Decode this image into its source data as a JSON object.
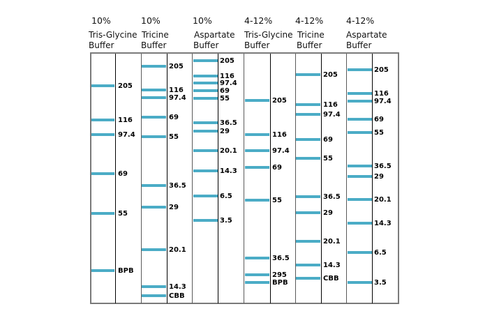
{
  "lanes": [
    {
      "percent": "10%",
      "buffer_line1": "Tris-Glycine",
      "buffer_line2": "Buffer",
      "markers": [
        {
          "label": "205",
          "pos": 123
        },
        {
          "label": "116",
          "pos": 172
        },
        {
          "label": "97.4",
          "pos": 193
        },
        {
          "label": "69",
          "pos": 249
        },
        {
          "label": "55",
          "pos": 306
        },
        {
          "label": "BPB",
          "pos": 388
        }
      ]
    },
    {
      "percent": "10%",
      "buffer_line1": "Tricine",
      "buffer_line2": "Buffer",
      "markers": [
        {
          "label": "205",
          "pos": 95
        },
        {
          "label": "116",
          "pos": 129
        },
        {
          "label": "97.4",
          "pos": 140
        },
        {
          "label": "69",
          "pos": 168
        },
        {
          "label": "55",
          "pos": 196
        },
        {
          "label": "36.5",
          "pos": 266
        },
        {
          "label": "29",
          "pos": 297
        },
        {
          "label": "20.1",
          "pos": 358
        },
        {
          "label": "14.3",
          "pos": 411
        },
        {
          "label": "CBB",
          "pos": 424
        }
      ]
    },
    {
      "percent": "10%",
      "buffer_line1": "Aspartate",
      "buffer_line2": "Buffer",
      "markers": [
        {
          "label": "205",
          "pos": 87
        },
        {
          "label": "116",
          "pos": 109
        },
        {
          "label": "97.4",
          "pos": 119
        },
        {
          "label": "69",
          "pos": 130
        },
        {
          "label": "55",
          "pos": 141
        },
        {
          "label": "36.5",
          "pos": 176
        },
        {
          "label": "29",
          "pos": 188
        },
        {
          "label": "20.1",
          "pos": 216
        },
        {
          "label": "14.3",
          "pos": 245
        },
        {
          "label": "6.5",
          "pos": 281
        },
        {
          "label": "3.5",
          "pos": 316
        }
      ]
    },
    {
      "percent": "4-12%",
      "buffer_line1": "Tris-Glycine",
      "buffer_line2": "Buffer",
      "markers": [
        {
          "label": "205",
          "pos": 144
        },
        {
          "label": "116",
          "pos": 193
        },
        {
          "label": "97.4",
          "pos": 216
        },
        {
          "label": "69",
          "pos": 240
        },
        {
          "label": "55",
          "pos": 287
        },
        {
          "label": "36.5",
          "pos": 370
        },
        {
          "label": "295",
          "pos": 394
        },
        {
          "label": "BPB",
          "pos": 405
        }
      ]
    },
    {
      "percent": "4-12%",
      "buffer_line1": "Tricine",
      "buffer_line2": "Buffer",
      "markers": [
        {
          "label": "205",
          "pos": 107
        },
        {
          "label": "116",
          "pos": 150
        },
        {
          "label": "97.4",
          "pos": 164
        },
        {
          "label": "69",
          "pos": 200
        },
        {
          "label": "55",
          "pos": 227
        },
        {
          "label": "36.5",
          "pos": 282
        },
        {
          "label": "29",
          "pos": 305
        },
        {
          "label": "20.1",
          "pos": 346
        },
        {
          "label": "14.3",
          "pos": 380
        },
        {
          "label": "CBB",
          "pos": 399
        }
      ]
    },
    {
      "percent": "4-12%",
      "buffer_line1": "Aspartate",
      "buffer_line2": "Buffer",
      "markers": [
        {
          "label": "205",
          "pos": 100
        },
        {
          "label": "116",
          "pos": 134
        },
        {
          "label": "97.4",
          "pos": 145
        },
        {
          "label": "69",
          "pos": 171
        },
        {
          "label": "55",
          "pos": 190
        },
        {
          "label": "36.5",
          "pos": 238
        },
        {
          "label": "29",
          "pos": 253
        },
        {
          "label": "20.1",
          "pos": 286
        },
        {
          "label": "14.3",
          "pos": 320
        },
        {
          "label": "6.5",
          "pos": 362
        },
        {
          "label": "3.5",
          "pos": 405
        }
      ]
    }
  ],
  "colors": {
    "band": "#4bacc6",
    "frame": "#7a7a7a"
  }
}
